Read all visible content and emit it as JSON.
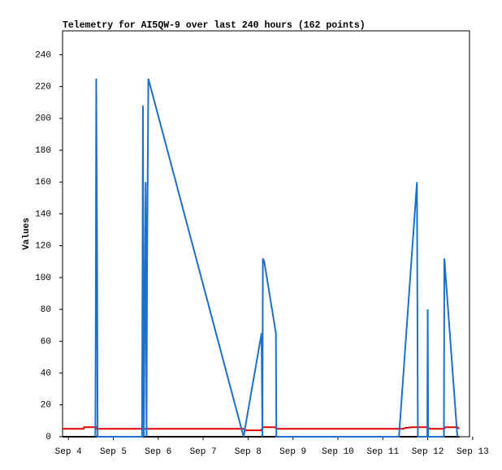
{
  "chart_data": {
    "type": "line",
    "title": "Telemetry for AI5QW-9 over last 240 hours (162 points)",
    "y_label": "Values",
    "xlim": [
      -0.13,
      8.93
    ],
    "xticks": [
      {
        "value": 0,
        "label": "Sep 4"
      },
      {
        "value": 1,
        "label": "Sep 5"
      },
      {
        "value": 2,
        "label": "Sep 6"
      },
      {
        "value": 3,
        "label": "Sep 7"
      },
      {
        "value": 4,
        "label": "Sep 8"
      },
      {
        "value": 5,
        "label": "Sep 9"
      },
      {
        "value": 6,
        "label": "Sep 10"
      },
      {
        "value": 7,
        "label": "Sep 11"
      },
      {
        "value": 8,
        "label": "Sep 12"
      },
      {
        "value": 9,
        "label": "Sep 13"
      }
    ],
    "ylim": [
      0,
      255
    ],
    "yticks": [
      0,
      20,
      40,
      60,
      80,
      100,
      120,
      140,
      160,
      180,
      200,
      220,
      240
    ],
    "grid": false,
    "series": [
      {
        "color": "#000000",
        "x": [
          -0.13,
          8.7
        ],
        "values": [
          0,
          0
        ]
      },
      {
        "color": "#e00000",
        "x": [
          -0.13,
          0.34,
          0.35,
          0.62,
          0.63,
          1.64,
          1.65,
          1.66,
          3.9,
          3.95,
          4.3,
          4.32,
          4.6,
          4.63,
          7.45,
          7.5,
          7.65,
          8.0,
          8.05,
          8.36,
          8.4,
          8.66,
          8.7
        ],
        "values": [
          5,
          5,
          6,
          6,
          5,
          5,
          6,
          5,
          5,
          4,
          4,
          6,
          6,
          5,
          5,
          5.5,
          6,
          6,
          5,
          5,
          6,
          6,
          5
        ]
      },
      {
        "color": "#1f6fc6",
        "x": [
          0.6,
          0.61,
          0.62,
          0.64,
          0.65,
          1.64,
          1.65,
          1.66,
          1.68,
          1.72,
          1.74,
          1.75,
          1.78,
          3.9,
          4.3,
          4.32,
          4.33,
          4.36,
          4.62,
          4.63,
          7.36,
          7.76,
          7.78,
          7.99,
          8.0,
          8.01,
          8.36,
          8.37,
          8.66
        ],
        "values": [
          0,
          80,
          225,
          112,
          0,
          0,
          104,
          208,
          0,
          160,
          0,
          97,
          225,
          0,
          65,
          0,
          112,
          110,
          65,
          0,
          0,
          160,
          0,
          0,
          80,
          0,
          0,
          112,
          0
        ]
      }
    ]
  }
}
